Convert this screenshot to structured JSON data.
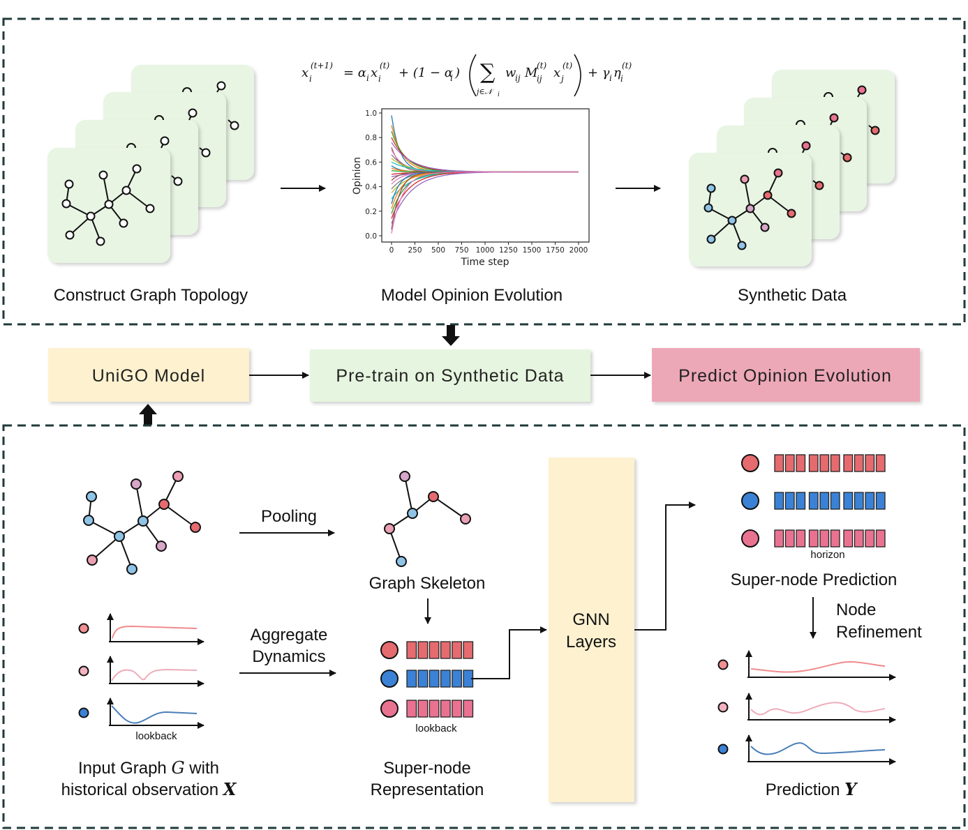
{
  "top_panel": {
    "formula_parts": {
      "lhs": "x",
      "lhs_sub": "i",
      "lhs_sup": "(t+1)",
      "eq": "= α",
      "a_sub": "i",
      "x1": "x",
      "x1_sub": "i",
      "x1_sup": "(t)",
      "plus1": "+ (1 − α",
      "a2_sub": "i",
      "close1": ")",
      "sum": "∑",
      "sum_sub": "j∈𝒩",
      "sum_sub_i": "i",
      "w": "w",
      "w_sub": "ij",
      "m": "M",
      "m_sub": "ij",
      "m_sup": "(t)",
      "xj": "x",
      "xj_sub": "j",
      "xj_sup": "(t)",
      "plus2": "+ γ",
      "g_sub": "i",
      "eta": "η",
      "eta_sub": "i",
      "eta_sup": "(t)"
    },
    "construct_label": "Construct Graph Topology",
    "model_label": "Model Opinion Evolution",
    "synthetic_label": "Synthetic Data"
  },
  "middle_row": {
    "unigo": "UniGO Model",
    "pretrain": "Pre-train on Synthetic Data",
    "predict": "Predict Opinion Evolution"
  },
  "bottom_panel": {
    "pooling": "Pooling",
    "graph_skeleton": "Graph Skeleton",
    "aggregate_line1": "Aggregate",
    "aggregate_line2": "Dynamics",
    "lookback_left": "lookback",
    "lookback_mid": "lookback",
    "input_line1_a": "Input Graph ",
    "input_line1_g": "G",
    "input_line1_b": " with",
    "input_line2_a": "historical observation ",
    "input_line2_x": "X",
    "supernode_line1": "Super-node",
    "supernode_line2": "Representation",
    "gnn_line1": "GNN",
    "gnn_line2": "Layers",
    "horizon": "horizon",
    "supernode_prediction": "Super-node Prediction",
    "node_line1": "Node",
    "node_line2": "Refinement",
    "prediction_a": "Prediction ",
    "prediction_y": "Y"
  },
  "colors": {
    "card_green": "#e8f5e3",
    "unigo_bg": "#fdf1cf",
    "pretrain_bg": "#e6f5df",
    "predict_bg": "#eda8b7",
    "gnn_bg": "#fdf1cf",
    "node_red": "#e56b6f",
    "node_blue": "#3b82d6",
    "node_pink": "#ea7291",
    "node_lightblue": "#8fc4e6",
    "node_lavender": "#d7a6c8"
  },
  "chart_data": {
    "type": "line",
    "title": "",
    "xlabel": "Time step",
    "ylabel": "Opinion",
    "xlim": [
      0,
      2000
    ],
    "ylim": [
      0.0,
      1.0
    ],
    "x_ticks": [
      "0",
      "250",
      "500",
      "750",
      "1000",
      "1250",
      "1500",
      "1750",
      "2000"
    ],
    "y_ticks": [
      "0.0",
      "0.2",
      "0.4",
      "0.6",
      "0.8",
      "1.0"
    ],
    "series_description": "many agent opinion trajectories converging from spread initial values to about 0.52",
    "converged_value": 0.52,
    "initial_values": [
      0.98,
      0.9,
      0.85,
      0.8,
      0.76,
      0.72,
      0.7,
      0.66,
      0.63,
      0.6,
      0.57,
      0.55,
      0.53,
      0.5,
      0.48,
      0.45,
      0.42,
      0.38,
      0.35,
      0.3,
      0.26,
      0.22,
      0.18,
      0.14,
      0.1,
      0.05,
      0.02
    ],
    "grid": false
  }
}
